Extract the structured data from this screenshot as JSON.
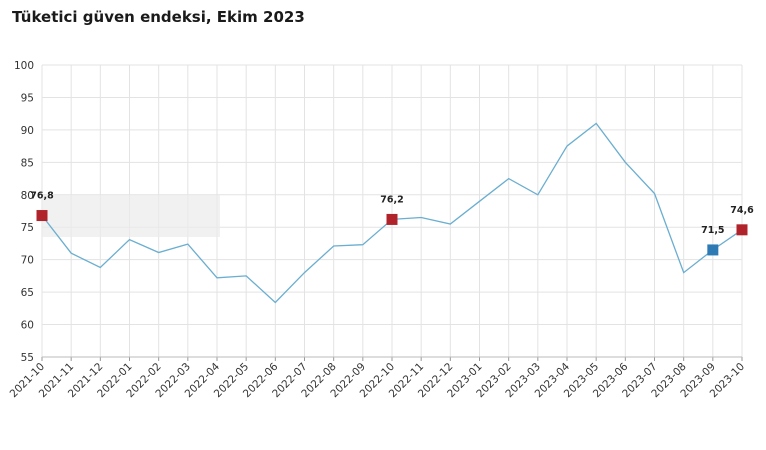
{
  "chart_data": {
    "type": "line",
    "title": "Tüketici güven endeksi, Ekim 2023",
    "xlabel": "",
    "ylabel": "",
    "ylim": [
      55,
      100
    ],
    "yticks": [
      55,
      60,
      65,
      70,
      75,
      80,
      85,
      90,
      95,
      100
    ],
    "grid": true,
    "legend": "none",
    "categories": [
      "2021-10",
      "2021-11",
      "2021-12",
      "2022-01",
      "2022-02",
      "2022-03",
      "2022-04",
      "2022-05",
      "2022-06",
      "2022-07",
      "2022-08",
      "2022-09",
      "2022-10",
      "2022-11",
      "2022-12",
      "2023-01",
      "2023-02",
      "2023-03",
      "2023-04",
      "2023-05",
      "2023-06",
      "2023-07",
      "2023-08",
      "2023-09",
      "2023-10"
    ],
    "series": [
      {
        "values": [
          76.8,
          71.0,
          68.8,
          73.1,
          71.1,
          72.4,
          67.2,
          67.5,
          63.4,
          68.0,
          72.1,
          72.3,
          76.2,
          76.5,
          75.5,
          79.0,
          82.5,
          80.0,
          87.5,
          91.0,
          85.0,
          80.2,
          68.0,
          71.5,
          74.6
        ],
        "color": "#6aaed0"
      }
    ],
    "highlights": [
      {
        "index": 0,
        "label": "76,8",
        "color": "#b0232a"
      },
      {
        "index": 12,
        "label": "76,2",
        "color": "#b0232a"
      },
      {
        "index": 23,
        "label": "71,5",
        "color": "#2e7ab5"
      },
      {
        "index": 24,
        "label": "74,6",
        "color": "#b0232a"
      }
    ]
  }
}
